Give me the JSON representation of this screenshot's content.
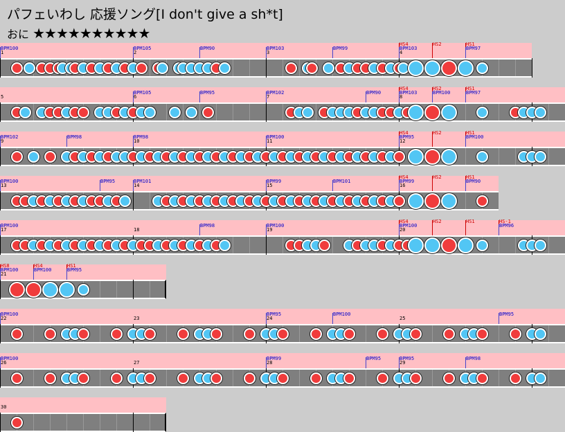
{
  "title": "パフェいわし 応援ソング[I don't give a sh*t]",
  "difficulty": {
    "label": "おに",
    "stars": "★★★★★★★★★★"
  },
  "colors": {
    "band": "#ffbfc4",
    "lane": "#7f7f7f",
    "don": "#f03c3c",
    "ka": "#52c6f4",
    "bpm": "#0000cc",
    "hs": "#cc0000"
  },
  "rows": [
    {
      "measures": 4,
      "complete": true,
      "labels": [
        {
          "t": "BPM100",
          "m": 0,
          "k": "bpm"
        },
        {
          "t": "1",
          "m": 0,
          "k": "num"
        },
        {
          "t": "BPM105",
          "m": 1,
          "k": "bpm"
        },
        {
          "t": "2",
          "m": 1,
          "k": "num"
        },
        {
          "t": "BPM90",
          "m": 1.5,
          "k": "bpm"
        },
        {
          "t": "BPM103",
          "m": 2,
          "k": "bpm"
        },
        {
          "t": "3",
          "m": 2,
          "k": "num"
        },
        {
          "t": "BPM99",
          "m": 2.5,
          "k": "bpm"
        },
        {
          "t": "HS4",
          "m": 3,
          "k": "hs"
        },
        {
          "t": "BPM103",
          "m": 3,
          "k": "bpm"
        },
        {
          "t": "4",
          "m": 3,
          "k": "num"
        },
        {
          "t": "HS2",
          "m": 3.25,
          "k": "hs"
        },
        {
          "t": "HS1",
          "m": 3.5,
          "k": "hs"
        },
        {
          "t": "BPM97",
          "m": 3.5,
          "k": "bpm"
        }
      ],
      "notes": "d0,k0.75,d1.5,d2,d2.5,k2.75,k3.25,d3.5,k4,d4.5,k5,d5.5,k6,d6.5,k7,d7.5,d8.5,k8.75,k9.75,k10,k10.5,k11,k11.5,d12,k12.5,d16.5,k17.5,d17.75,k18.75,d19.5,k20,d20.5,d21,k21.5,d22,k22.5,d23,k23.25,K24,K25,D26,K27,k28"
    },
    {
      "measures": 5,
      "complete": true,
      "labels": [
        {
          "t": "5",
          "m": 0,
          "k": "num"
        },
        {
          "t": "BPM105",
          "m": 1,
          "k": "bpm"
        },
        {
          "t": "6",
          "m": 1,
          "k": "num"
        },
        {
          "t": "BPM95",
          "m": 1.5,
          "k": "bpm"
        },
        {
          "t": "BPM102",
          "m": 2,
          "k": "bpm"
        },
        {
          "t": "7",
          "m": 2,
          "k": "num"
        },
        {
          "t": "BPM90",
          "m": 2.75,
          "k": "bpm"
        },
        {
          "t": "HS4",
          "m": 3,
          "k": "hs"
        },
        {
          "t": "BPM103",
          "m": 3,
          "k": "bpm"
        },
        {
          "t": "8",
          "m": 3,
          "k": "num"
        },
        {
          "t": "HS2",
          "m": 3.25,
          "k": "hs"
        },
        {
          "t": "BPM100",
          "m": 3.25,
          "k": "bpm"
        },
        {
          "t": "HS1",
          "m": 3.5,
          "k": "hs"
        },
        {
          "t": "BPM97",
          "m": 3.5,
          "k": "bpm"
        }
      ],
      "notes": "d0,k0.5,k1.5,d2,d2.5,k3,d3.5,d4,k5,k5.5,d6,k6.5,d7,k7.5,d8,k8,k9.5,k10.5,d11.5,d16.5,k17,k17.5,d18.5,k19,k19.5,k20,d20.5,k21,k21.5,d22,d22.5,k23,d23.5,K24,D25,K26,k28,d30,k30.5,k31,k31.5"
    },
    {
      "measures": 5,
      "complete": true,
      "labels": [
        {
          "t": "BPM102",
          "m": 0,
          "k": "bpm"
        },
        {
          "t": "9",
          "m": 0,
          "k": "num"
        },
        {
          "t": "BPM98",
          "m": 0.5,
          "k": "bpm"
        },
        {
          "t": "BPM98",
          "m": 1,
          "k": "bpm"
        },
        {
          "t": "10",
          "m": 1,
          "k": "num"
        },
        {
          "t": "BPM100",
          "m": 2,
          "k": "bpm"
        },
        {
          "t": "11",
          "m": 2,
          "k": "num"
        },
        {
          "t": "HS4",
          "m": 3,
          "k": "hs"
        },
        {
          "t": "BPM95",
          "m": 3,
          "k": "bpm"
        },
        {
          "t": "12",
          "m": 3,
          "k": "num"
        },
        {
          "t": "HS2",
          "m": 3.25,
          "k": "hs"
        },
        {
          "t": "HS1",
          "m": 3.5,
          "k": "hs"
        },
        {
          "t": "BPM100",
          "m": 3.5,
          "k": "bpm"
        }
      ],
      "notes": "d0,k1,d2,k3,d3.5,k4,d4.5,k5,d5.5,k6,k6.5,d7,k7.5,d8,k8.5,d9,k9.5,d10,k10.5,d11,k11.5,d12,k12.5,d13,k13.5,d14,k14.5,d15,k15.5,d16,k16.5,d17,k17.5,d18,k18.5,d19,k19.5,d20,k20.5,d21,k21.5,d22,k22.5,d23,K24,D25,K26,k28,k30.5,k31,k31.5"
    },
    {
      "measures": 4,
      "complete": false,
      "labels": [
        {
          "t": "BPM100",
          "m": 0,
          "k": "bpm"
        },
        {
          "t": "13",
          "m": 0,
          "k": "num"
        },
        {
          "t": "BPM95",
          "m": 0.75,
          "k": "bpm"
        },
        {
          "t": "BPM101",
          "m": 1,
          "k": "bpm"
        },
        {
          "t": "14",
          "m": 1,
          "k": "num"
        },
        {
          "t": "BPM99",
          "m": 2,
          "k": "bpm"
        },
        {
          "t": "15",
          "m": 2,
          "k": "num"
        },
        {
          "t": "BPM101",
          "m": 2.5,
          "k": "bpm"
        },
        {
          "t": "HS4",
          "m": 3,
          "k": "hs"
        },
        {
          "t": "BPM99",
          "m": 3,
          "k": "bpm"
        },
        {
          "t": "16",
          "m": 3,
          "k": "num"
        },
        {
          "t": "HS2",
          "m": 3.25,
          "k": "hs"
        },
        {
          "t": "HS1",
          "m": 3.5,
          "k": "hs"
        },
        {
          "t": "BPM90",
          "m": 3.5,
          "k": "bpm"
        }
      ],
      "notes": "d0,d0.5,k1,d1.5,k2,d2.5,k3,d3.5,k4,d4.5,d5,k5.5,d6,k6.5,k8.5,d9,k9.5,d10,k10.5,d11,k11.5,d12,k12.5,d13,k13.5,d14,k14.5,d15,k15.5,d16,k16.5,d17,k17.5,d18,k18.5,d19,k19.5,d20,k20.5,d21,k21.5,d22,k22.5,d23,K24,D25,K26,d28"
    },
    {
      "measures": 5,
      "complete": true,
      "labels": [
        {
          "t": "BPM100",
          "m": 0,
          "k": "bpm"
        },
        {
          "t": "17",
          "m": 0,
          "k": "num"
        },
        {
          "t": "18",
          "m": 1,
          "k": "num"
        },
        {
          "t": "BPM98",
          "m": 1.5,
          "k": "bpm"
        },
        {
          "t": "BPM100",
          "m": 2,
          "k": "bpm"
        },
        {
          "t": "19",
          "m": 2,
          "k": "num"
        },
        {
          "t": "HS4",
          "m": 3,
          "k": "hs"
        },
        {
          "t": "BPM100",
          "m": 3,
          "k": "bpm"
        },
        {
          "t": "20",
          "m": 3,
          "k": "num"
        },
        {
          "t": "HS2",
          "m": 3.25,
          "k": "hs"
        },
        {
          "t": "HS1",
          "m": 3.5,
          "k": "hs"
        },
        {
          "t": "HS-1",
          "m": 3.75,
          "k": "hs"
        },
        {
          "t": "BPM96",
          "m": 3.75,
          "k": "bpm"
        }
      ],
      "notes": "d0,d0.5,k1,d1.5,k2,d2.5,k3,d3.5,k4,d4.5,k5,d5.5,k6,d6.5,k7,d7.5,d8,k8.5,d9,k9.5,d10,k10.5,d11,k11.5,d12,k12.5,d16.5,d17,k17.5,k18,d18.5,k20,d20.5,k21,k21.5,d22,k22.5,d23,d23.5,K24,K25,D26,K27,k28,k30.5,k31,k31.5"
    },
    {
      "measures": 1,
      "complete": true,
      "labels": [
        {
          "t": "HS8",
          "m": 0,
          "k": "hs"
        },
        {
          "t": "BPM100",
          "m": 0,
          "k": "bpm"
        },
        {
          "t": "21",
          "m": 0,
          "k": "num"
        },
        {
          "t": "HS4",
          "m": 0.25,
          "k": "hs"
        },
        {
          "t": "BPM100",
          "m": 0.25,
          "k": "bpm"
        },
        {
          "t": "HS1",
          "m": 0.5,
          "k": "hs"
        },
        {
          "t": "BPM95",
          "m": 0.5,
          "k": "bpm"
        }
      ],
      "notes": "D0,D1,K2,K3,k4"
    },
    {
      "measures": 5,
      "complete": true,
      "labels": [
        {
          "t": "BPM100",
          "m": 0,
          "k": "bpm"
        },
        {
          "t": "22",
          "m": 0,
          "k": "num"
        },
        {
          "t": "23",
          "m": 1,
          "k": "num"
        },
        {
          "t": "BPM95",
          "m": 2,
          "k": "bpm"
        },
        {
          "t": "24",
          "m": 2,
          "k": "num"
        },
        {
          "t": "BPM100",
          "m": 2.5,
          "k": "bpm"
        },
        {
          "t": "25",
          "m": 3,
          "k": "num"
        },
        {
          "t": "BPM95",
          "m": 3.75,
          "k": "bpm"
        }
      ],
      "notes": "d0,d2,k3,k3.5,d4,d6,k7,k7.5,d8,d10,k11,k11.5,d12,d14,k15,k15.5,d16,d18,k19,k19.5,d20,d22,k23,k23.5,d24,d26,k27,k27.5,d28,d30,k31,k31.5"
    },
    {
      "measures": 5,
      "complete": true,
      "labels": [
        {
          "t": "BPM100",
          "m": 0,
          "k": "bpm"
        },
        {
          "t": "26",
          "m": 0,
          "k": "num"
        },
        {
          "t": "27",
          "m": 1,
          "k": "num"
        },
        {
          "t": "BPM99",
          "m": 2,
          "k": "bpm"
        },
        {
          "t": "28",
          "m": 2,
          "k": "num"
        },
        {
          "t": "BPM95",
          "m": 2.75,
          "k": "bpm"
        },
        {
          "t": "BPM95",
          "m": 3,
          "k": "bpm"
        },
        {
          "t": "29",
          "m": 3,
          "k": "num"
        },
        {
          "t": "BPM98",
          "m": 3.5,
          "k": "bpm"
        }
      ],
      "notes": "d0,d2,k3,k3.5,d4,d6,k7,k7.5,d8,d10,k11,k11.5,d12,d14,k15,k15.5,d16,d18,k19,k19.5,d20,d22,k23,k23.5,d24,d26,k27,k27.5,d28,d30,k31,k31.5"
    },
    {
      "measures": 1,
      "complete": true,
      "labels": [
        {
          "t": "30",
          "m": 0,
          "k": "num"
        }
      ],
      "notes": "d0"
    }
  ]
}
